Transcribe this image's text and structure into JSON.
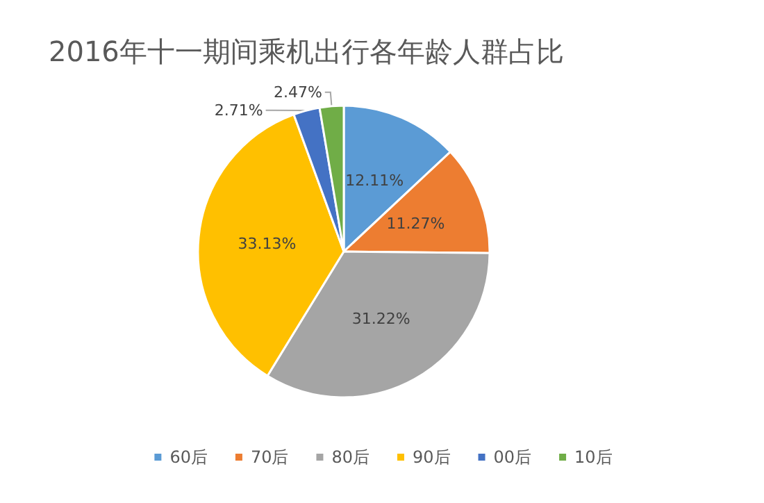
{
  "chart_data": {
    "type": "pie",
    "title": "2016年十一期间乘机出行各年龄人群占比",
    "categories": [
      "60后",
      "70后",
      "80后",
      "90后",
      "00后",
      "10后"
    ],
    "values": [
      12.11,
      11.27,
      31.22,
      33.13,
      2.71,
      2.47
    ],
    "value_labels": [
      "12.11%",
      "11.27%",
      "31.22%",
      "33.13%",
      "2.71%",
      "2.47%"
    ],
    "colors": [
      "#5b9bd5",
      "#ed7d31",
      "#a5a5a5",
      "#ffc000",
      "#4472c4",
      "#70ad47"
    ],
    "legend": "bottom"
  }
}
